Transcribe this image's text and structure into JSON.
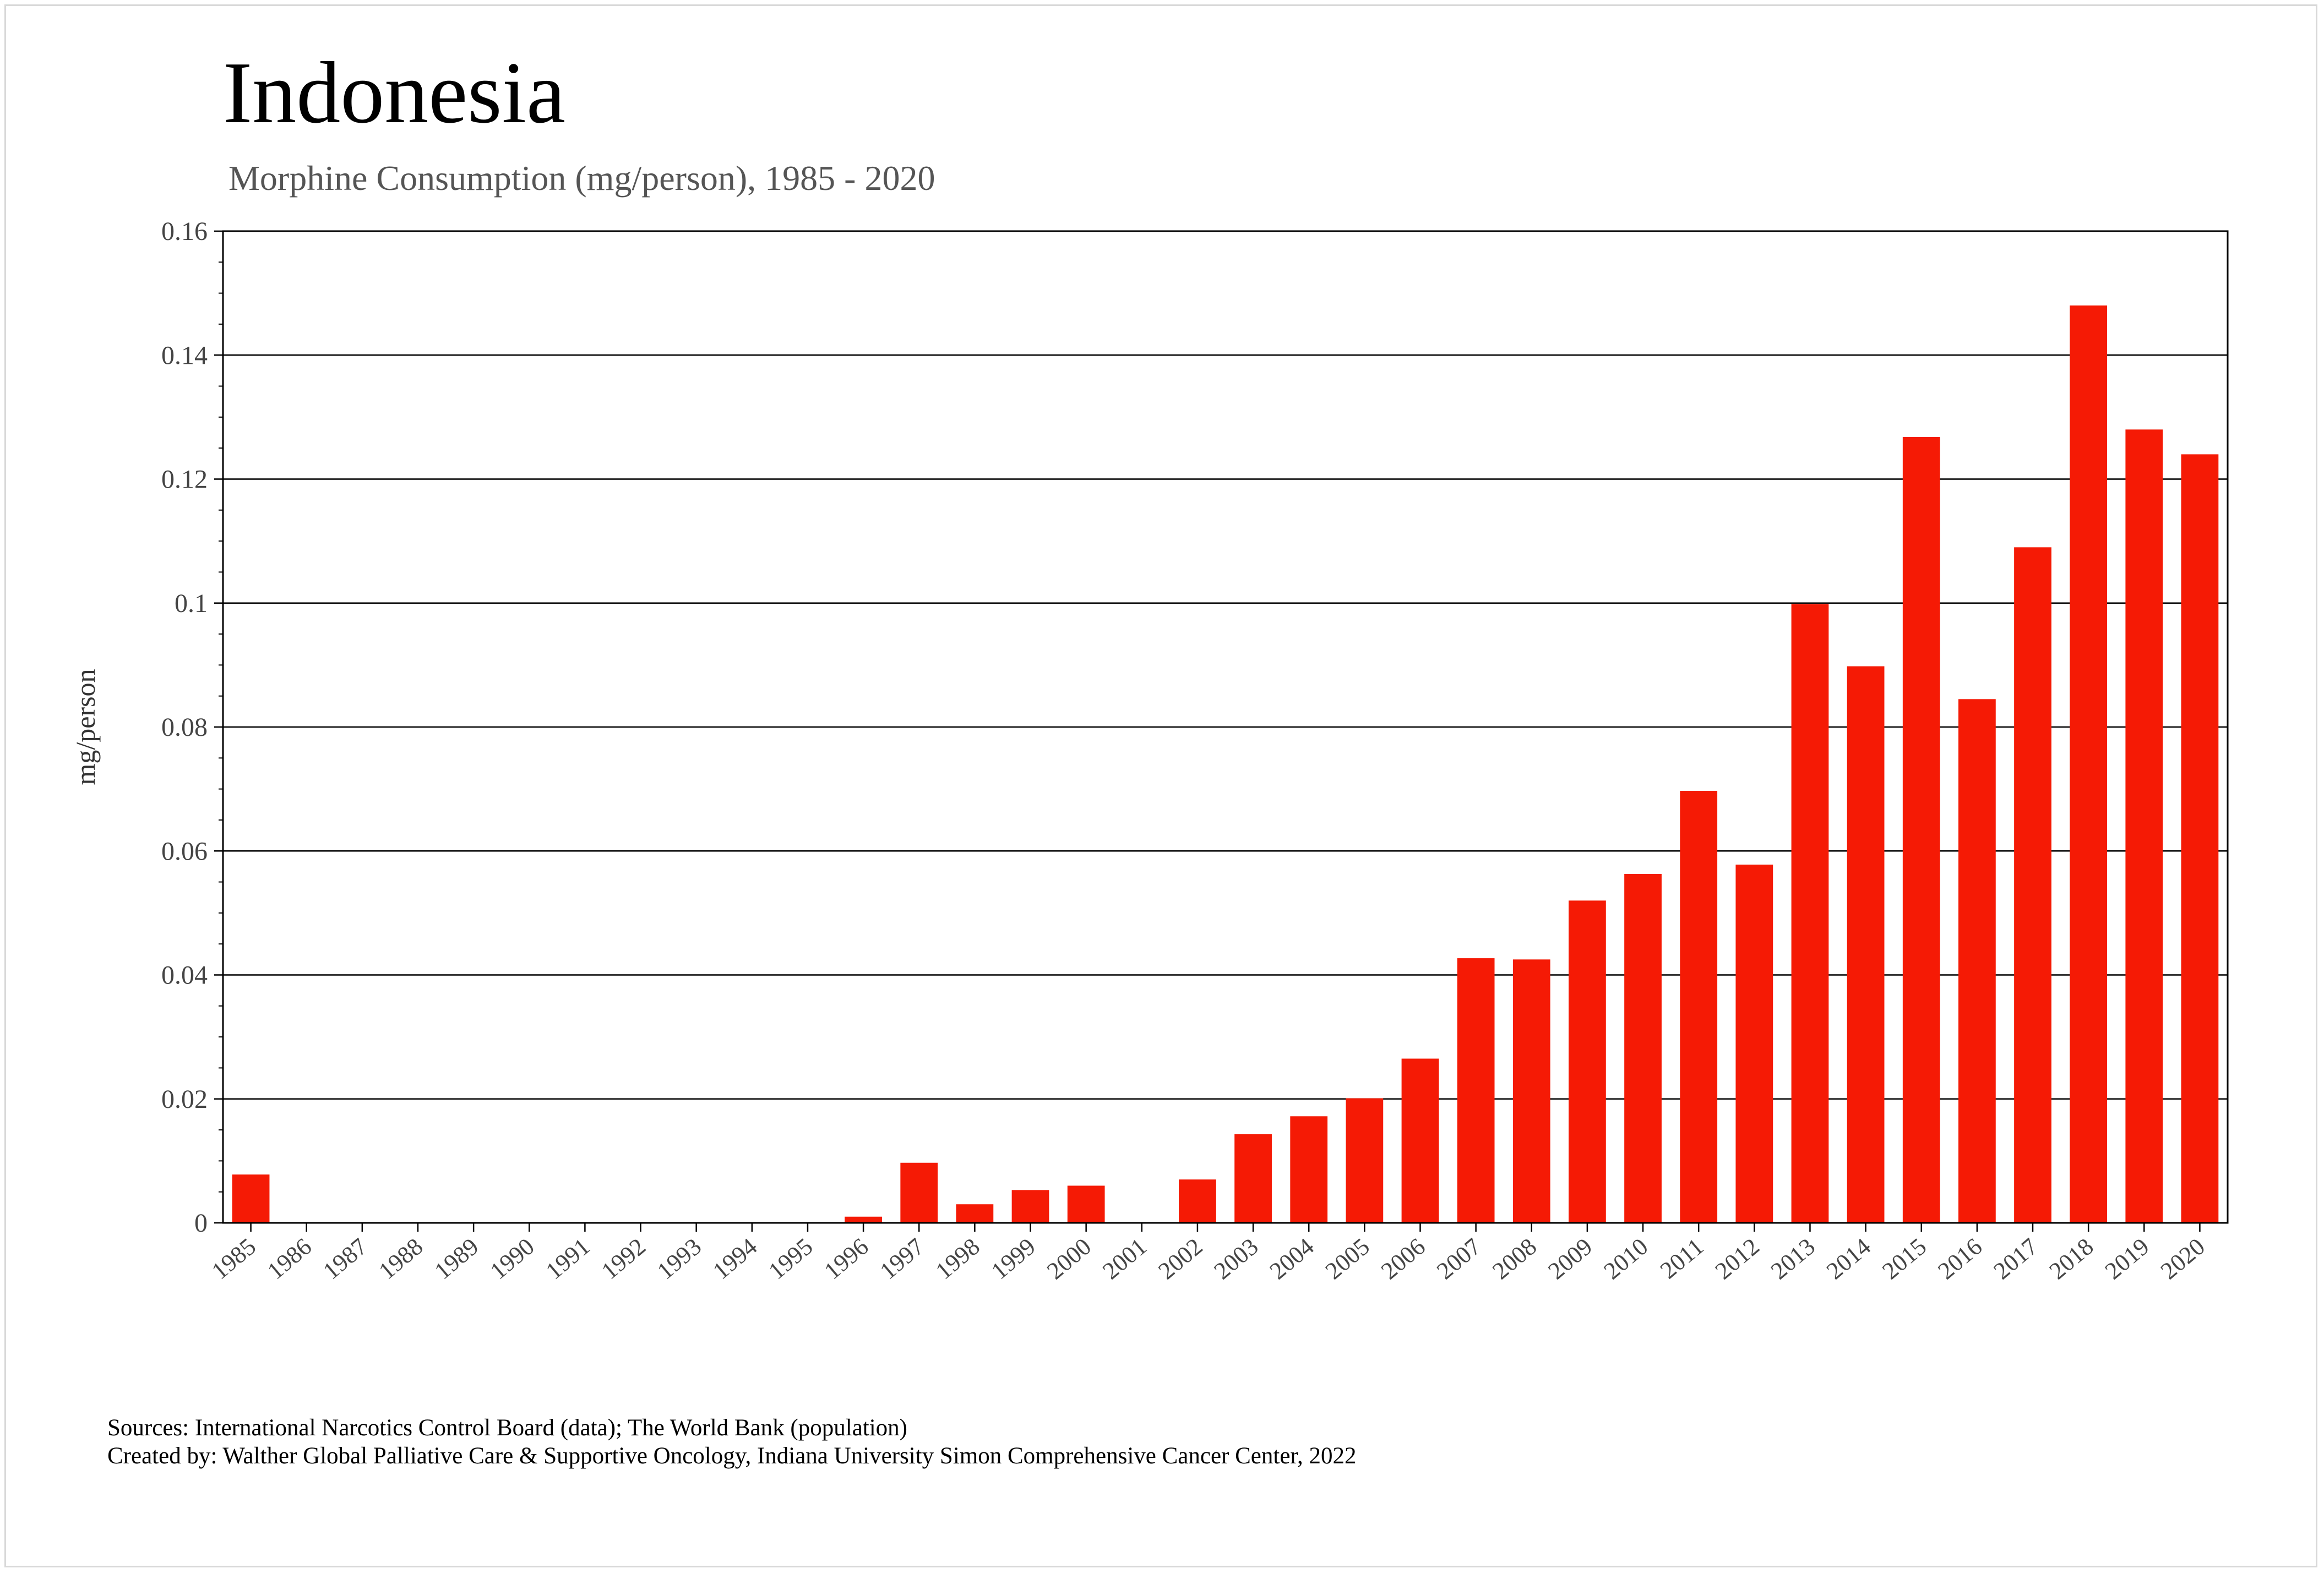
{
  "chart_data": {
    "type": "bar",
    "title": "Indonesia",
    "subtitle": "Morphine Consumption (mg/person), 1985 - 2020",
    "xlabel": "",
    "ylabel": "mg/person",
    "ylim": [
      0,
      0.16
    ],
    "yticks": [
      "0",
      "0.02",
      "0.04",
      "0.06",
      "0.08",
      "0.1",
      "0.12",
      "0.14",
      "0.16"
    ],
    "ytick_values": [
      0,
      0.02,
      0.04,
      0.06,
      0.08,
      0.1,
      0.12,
      0.14,
      0.16
    ],
    "grid": "horizontal",
    "legend": "none",
    "bar_color": "#f51a05",
    "categories": [
      "1985",
      "1986",
      "1987",
      "1988",
      "1989",
      "1990",
      "1991",
      "1992",
      "1993",
      "1994",
      "1995",
      "1996",
      "1997",
      "1998",
      "1999",
      "2000",
      "2001",
      "2002",
      "2003",
      "2004",
      "2005",
      "2006",
      "2007",
      "2008",
      "2009",
      "2010",
      "2011",
      "2012",
      "2013",
      "2014",
      "2015",
      "2016",
      "2017",
      "2018",
      "2019",
      "2020"
    ],
    "values": [
      0.0078,
      0,
      0,
      0,
      0,
      0,
      0,
      0,
      0,
      0,
      0,
      0.001,
      0.0097,
      0.003,
      0.0053,
      0.006,
      0,
      0.007,
      0.0143,
      0.0172,
      0.0201,
      0.0265,
      0.0427,
      0.0425,
      0.052,
      0.0563,
      0.0697,
      0.0578,
      0.0998,
      0.0898,
      0.1268,
      0.0845,
      0.109,
      0.148,
      0.128,
      0.124
    ]
  },
  "footer": {
    "sources": "Sources: International Narcotics Control Board (data); The World Bank (population)",
    "created_by": "Created by: Walther  Global Palliative Care & Supportive Oncology, Indiana University Simon Comprehensive Cancer Center, 2022"
  }
}
